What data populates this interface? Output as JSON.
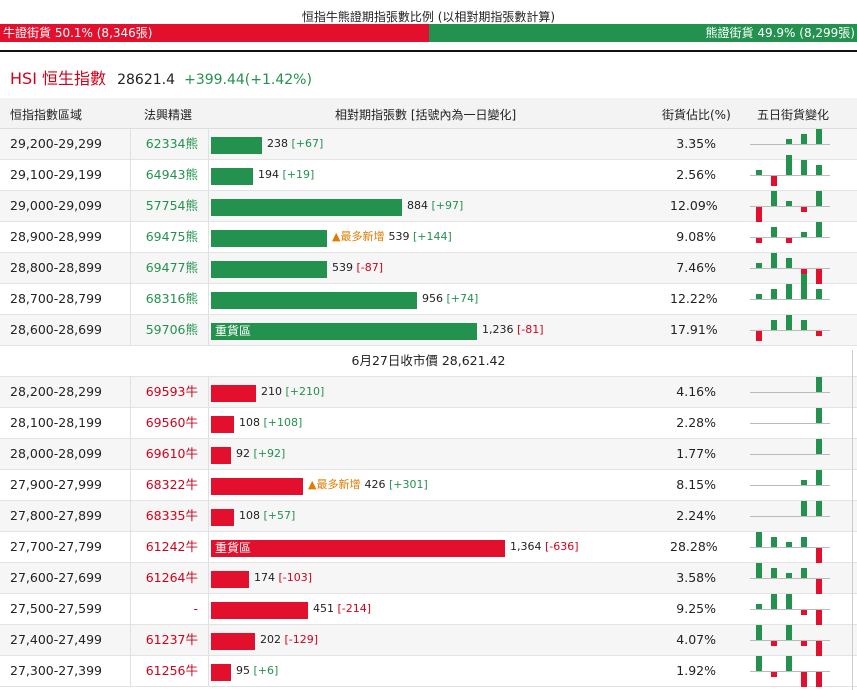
{
  "title": "恒指牛熊證期指張數比例 (以相對期指張數計算)",
  "ratio": {
    "bull_label": "牛證街貨 50.1% (8,346張)",
    "bull_pct": 50.1,
    "bear_label": "熊證街貨 49.9% (8,299張)",
    "bear_pct": 49.9
  },
  "index": {
    "name": "HSI 恒生指數",
    "price": "28621.4",
    "change": "+399.44(+1.42%)"
  },
  "headers": {
    "range": "恒指指數區域",
    "code": "法興精選",
    "contracts": "相對期指張數 [括號內為一日變化]",
    "pct": "街貨佔比(%)",
    "five_day": "五日街貨變化"
  },
  "separator": "6月27日收市價 28,621.42",
  "max_value": 1364,
  "colors": {
    "bull": "#e3102d",
    "bear": "#23924f",
    "note": "#e07b00"
  },
  "bear_rows": [
    {
      "range": "29,200-29,299",
      "code": "62334熊",
      "value": 238,
      "value_label": "238",
      "change": "[+67]",
      "pct": "3.35%",
      "note": "",
      "bar_text": "",
      "five_day": [
        0,
        0,
        1,
        2,
        3
      ]
    },
    {
      "range": "29,100-29,199",
      "code": "64943熊",
      "value": 194,
      "value_label": "194",
      "change": "[+19]",
      "pct": "2.56%",
      "note": "",
      "bar_text": "",
      "five_day": [
        1,
        -2,
        4,
        3,
        2
      ]
    },
    {
      "range": "29,000-29,099",
      "code": "57754熊",
      "value": 884,
      "value_label": "884",
      "change": "[+97]",
      "pct": "12.09%",
      "note": "",
      "bar_text": "",
      "five_day": [
        -3,
        3,
        1,
        -1,
        3
      ]
    },
    {
      "range": "28,900-28,999",
      "code": "69475熊",
      "value": 539,
      "value_label": "539",
      "change": "[+144]",
      "pct": "9.08%",
      "note": "▲最多新增",
      "bar_text": "",
      "five_day": [
        -1,
        2,
        -1,
        1,
        3
      ]
    },
    {
      "range": "28,800-28,899",
      "code": "69477熊",
      "value": 539,
      "value_label": "539",
      "change": "[-87]",
      "pct": "7.46%",
      "note": "",
      "bar_text": "",
      "five_day": [
        1,
        3,
        2,
        -3,
        -3
      ]
    },
    {
      "range": "28,700-28,799",
      "code": "68316熊",
      "value": 956,
      "value_label": "956",
      "change": "[+74]",
      "pct": "12.22%",
      "note": "",
      "bar_text": "",
      "five_day": [
        1,
        2,
        3,
        5,
        2
      ]
    },
    {
      "range": "28,600-28,699",
      "code": "59706熊",
      "value": 1236,
      "value_label": "1,236",
      "change": "[-81]",
      "pct": "17.91%",
      "note": "",
      "bar_text": "重貨區",
      "five_day": [
        -2,
        2,
        3,
        2,
        -1
      ]
    }
  ],
  "bull_rows": [
    {
      "range": "28,200-28,299",
      "code": "69593牛",
      "value": 210,
      "value_label": "210",
      "change": "[+210]",
      "pct": "4.16%",
      "note": "",
      "bar_text": "",
      "five_day": [
        0,
        0,
        0,
        0,
        3
      ]
    },
    {
      "range": "28,100-28,199",
      "code": "69560牛",
      "value": 108,
      "value_label": "108",
      "change": "[+108]",
      "pct": "2.28%",
      "note": "",
      "bar_text": "",
      "five_day": [
        0,
        0,
        0,
        0,
        3
      ]
    },
    {
      "range": "28,000-28,099",
      "code": "69610牛",
      "value": 92,
      "value_label": "92",
      "change": "[+92]",
      "pct": "1.77%",
      "note": "",
      "bar_text": "",
      "five_day": [
        0,
        0,
        0,
        0,
        3
      ]
    },
    {
      "range": "27,900-27,999",
      "code": "68322牛",
      "value": 426,
      "value_label": "426",
      "change": "[+301]",
      "pct": "8.15%",
      "note": "▲最多新增",
      "bar_text": "",
      "five_day": [
        0,
        0,
        0,
        1,
        3
      ]
    },
    {
      "range": "27,800-27,899",
      "code": "68335牛",
      "value": 108,
      "value_label": "108",
      "change": "[+57]",
      "pct": "2.24%",
      "note": "",
      "bar_text": "",
      "five_day": [
        0,
        0,
        0,
        3,
        3
      ]
    },
    {
      "range": "27,700-27,799",
      "code": "61242牛",
      "value": 1364,
      "value_label": "1,364",
      "change": "[-636]",
      "pct": "28.28%",
      "note": "",
      "bar_text": "重貨區",
      "five_day": [
        3,
        2,
        1,
        2,
        -3
      ]
    },
    {
      "range": "27,600-27,699",
      "code": "61264牛",
      "value": 174,
      "value_label": "174",
      "change": "[-103]",
      "pct": "3.58%",
      "note": "",
      "bar_text": "",
      "five_day": [
        3,
        2,
        1,
        2,
        -3
      ]
    },
    {
      "range": "27,500-27,599",
      "code": "-",
      "value": 451,
      "value_label": "451",
      "change": "[-214]",
      "pct": "9.25%",
      "note": "",
      "bar_text": "",
      "five_day": [
        1,
        3,
        3,
        -1,
        -3
      ]
    },
    {
      "range": "27,400-27,499",
      "code": "61237牛",
      "value": 202,
      "value_label": "202",
      "change": "[-129]",
      "pct": "4.07%",
      "note": "",
      "bar_text": "",
      "five_day": [
        3,
        -1,
        3,
        -1,
        -3
      ]
    },
    {
      "range": "27,300-27,399",
      "code": "61256牛",
      "value": 95,
      "value_label": "95",
      "change": "[+6]",
      "pct": "1.92%",
      "note": "",
      "bar_text": "",
      "five_day": [
        3,
        -1,
        3,
        -3,
        -3
      ]
    }
  ]
}
